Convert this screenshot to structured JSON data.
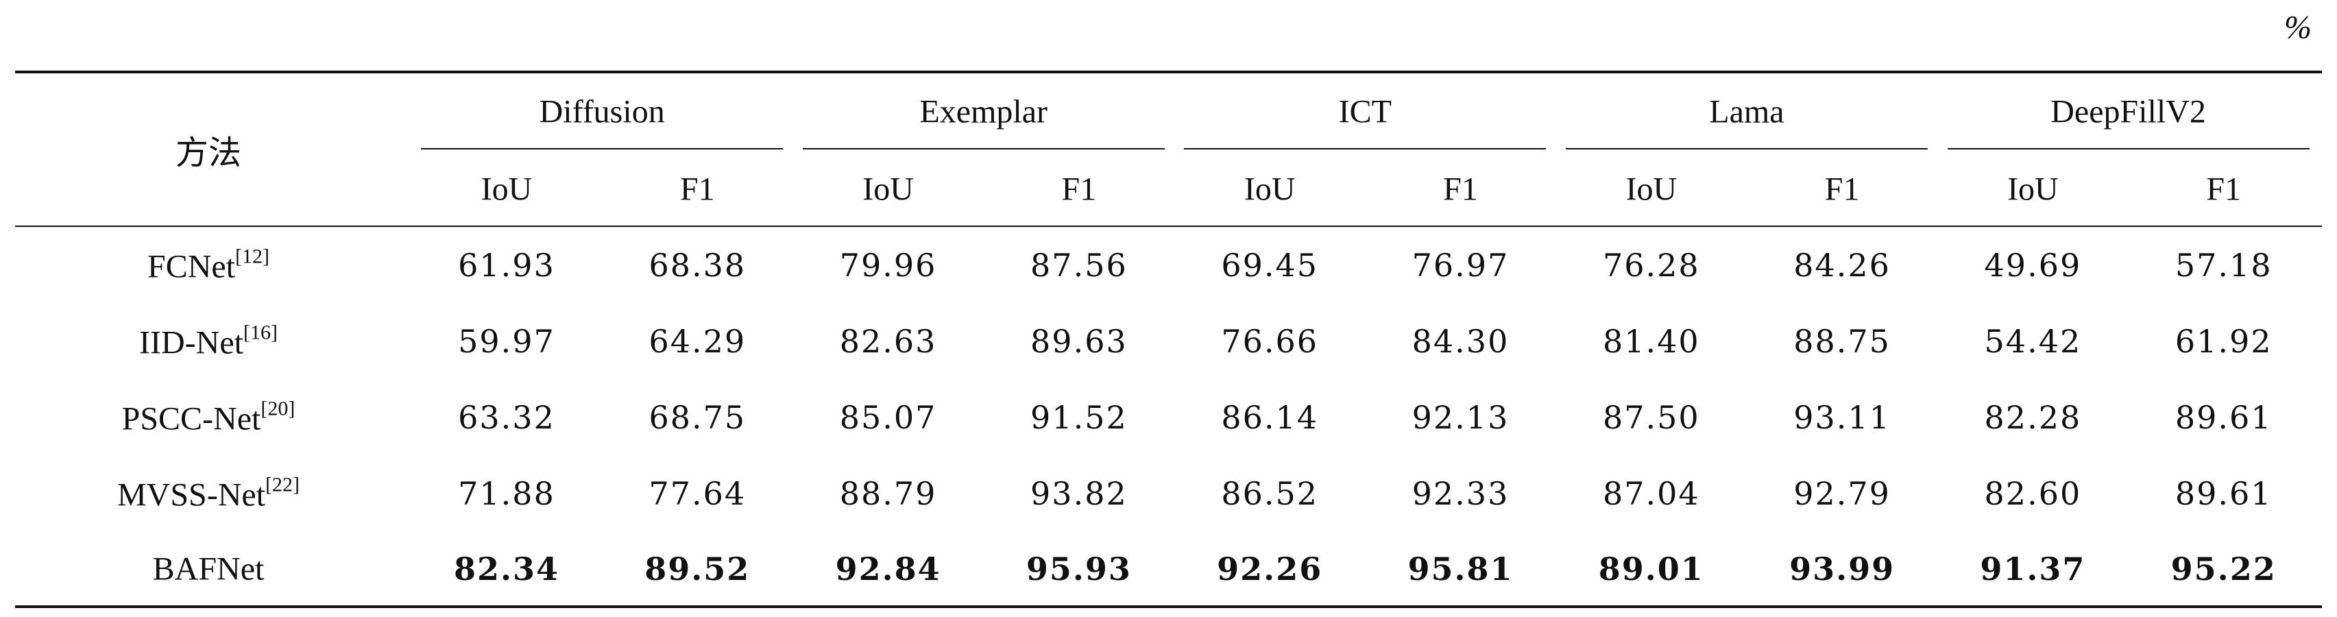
{
  "unit": "%",
  "header": {
    "method": "方法",
    "groups": [
      "Diffusion",
      "Exemplar",
      "ICT",
      "Lama",
      "DeepFillV2"
    ],
    "subheaders": [
      "IoU",
      "F1"
    ]
  },
  "rows": [
    {
      "method": "FCNet",
      "cite": "[12]",
      "bold": false,
      "values": [
        "61.93",
        "68.38",
        "79.96",
        "87.56",
        "69.45",
        "76.97",
        "76.28",
        "84.26",
        "49.69",
        "57.18"
      ]
    },
    {
      "method": "IID-Net",
      "cite": "[16]",
      "bold": false,
      "values": [
        "59.97",
        "64.29",
        "82.63",
        "89.63",
        "76.66",
        "84.30",
        "81.40",
        "88.75",
        "54.42",
        "61.92"
      ]
    },
    {
      "method": "PSCC-Net",
      "cite": "[20]",
      "bold": false,
      "values": [
        "63.32",
        "68.75",
        "85.07",
        "91.52",
        "86.14",
        "92.13",
        "87.50",
        "93.11",
        "82.28",
        "89.61"
      ]
    },
    {
      "method": "MVSS-Net",
      "cite": "[22]",
      "bold": false,
      "values": [
        "71.88",
        "77.64",
        "88.79",
        "93.82",
        "86.52",
        "92.33",
        "87.04",
        "92.79",
        "82.60",
        "89.61"
      ]
    },
    {
      "method": "BAFNet",
      "cite": null,
      "bold": true,
      "values": [
        "82.34",
        "89.52",
        "92.84",
        "95.93",
        "92.26",
        "95.81",
        "89.01",
        "93.99",
        "91.37",
        "95.22"
      ]
    }
  ]
}
